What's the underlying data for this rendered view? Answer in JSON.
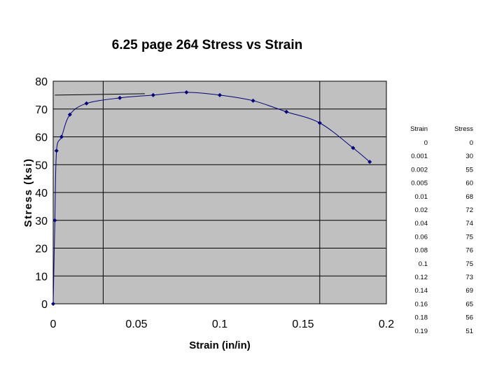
{
  "chart_data": {
    "type": "scatter",
    "title": "6.25 page 264  Stress vs Strain",
    "xlabel": "Strain (in/in)",
    "ylabel": "Stress (ksi)",
    "xlim": [
      0,
      0.2
    ],
    "ylim": [
      0,
      80
    ],
    "x_ticks": [
      "0",
      "0.05",
      "0.1",
      "0.15",
      "0.2"
    ],
    "y_ticks": [
      "0",
      "10",
      "20",
      "30",
      "40",
      "50",
      "60",
      "70",
      "80"
    ],
    "grid": true,
    "series_color": "#000080",
    "plot_background": "#c0c0c0",
    "series": [
      {
        "x": [
          0,
          0.001,
          0.002,
          0.005,
          0.01,
          0.02,
          0.04,
          0.06,
          0.08,
          0.1,
          0.12,
          0.14,
          0.16,
          0.18,
          0.19
        ],
        "y": [
          0,
          30,
          55,
          60,
          68,
          72,
          74,
          75,
          76,
          75,
          73,
          69,
          65,
          56,
          51
        ]
      }
    ],
    "table": {
      "headers": [
        "Strain",
        "Stress"
      ],
      "rows": [
        [
          "0",
          "0"
        ],
        [
          "0.001",
          "30"
        ],
        [
          "0.002",
          "55"
        ],
        [
          "0.005",
          "60"
        ],
        [
          "0.01",
          "68"
        ],
        [
          "0.02",
          "72"
        ],
        [
          "0.04",
          "74"
        ],
        [
          "0.06",
          "75"
        ],
        [
          "0.08",
          "76"
        ],
        [
          "0.1",
          "75"
        ],
        [
          "0.12",
          "73"
        ],
        [
          "0.14",
          "69"
        ],
        [
          "0.16",
          "65"
        ],
        [
          "0.18",
          "56"
        ],
        [
          "0.19",
          "51"
        ]
      ]
    }
  }
}
